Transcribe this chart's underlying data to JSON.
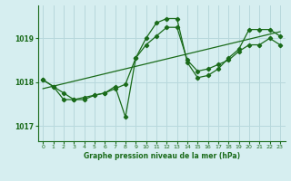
{
  "title": "Graphe pression niveau de la mer (hPa)",
  "background_color": "#d6eef0",
  "grid_color": "#b8d8dc",
  "line_color": "#1a6b1a",
  "xlim": [
    -0.5,
    23.5
  ],
  "ylim": [
    1016.65,
    1019.75
  ],
  "yticks": [
    1017,
    1018,
    1019
  ],
  "xticks": [
    0,
    1,
    2,
    3,
    4,
    5,
    6,
    7,
    8,
    9,
    10,
    11,
    12,
    13,
    14,
    15,
    16,
    17,
    18,
    19,
    20,
    21,
    22,
    23
  ],
  "series1_x": [
    0,
    1,
    2,
    3,
    4,
    5,
    6,
    7,
    8,
    9,
    10,
    11,
    12,
    13,
    14,
    15,
    16,
    17,
    18,
    19,
    20,
    21,
    22,
    23
  ],
  "series1_y": [
    1018.05,
    1017.9,
    1017.75,
    1017.6,
    1017.65,
    1017.7,
    1017.75,
    1017.85,
    1017.95,
    1018.55,
    1018.85,
    1019.05,
    1019.25,
    1019.25,
    1018.5,
    1018.25,
    1018.3,
    1018.4,
    1018.5,
    1018.7,
    1018.85,
    1018.85,
    1019.0,
    1018.85
  ],
  "series2_x": [
    0,
    1,
    2,
    3,
    4,
    5,
    6,
    7,
    8,
    9,
    10,
    11,
    12,
    13,
    14,
    15,
    16,
    17,
    18,
    19,
    20,
    21,
    22,
    23
  ],
  "series2_y": [
    1018.05,
    1017.9,
    1017.6,
    1017.6,
    1017.6,
    1017.7,
    1017.75,
    1017.9,
    1017.2,
    1018.55,
    1019.0,
    1019.35,
    1019.45,
    1019.45,
    1018.45,
    1018.1,
    1018.15,
    1018.3,
    1018.55,
    1018.75,
    1019.2,
    1019.2,
    1019.2,
    1019.05
  ],
  "series3_x": [
    0,
    23
  ],
  "series3_y": [
    1017.85,
    1019.15
  ]
}
